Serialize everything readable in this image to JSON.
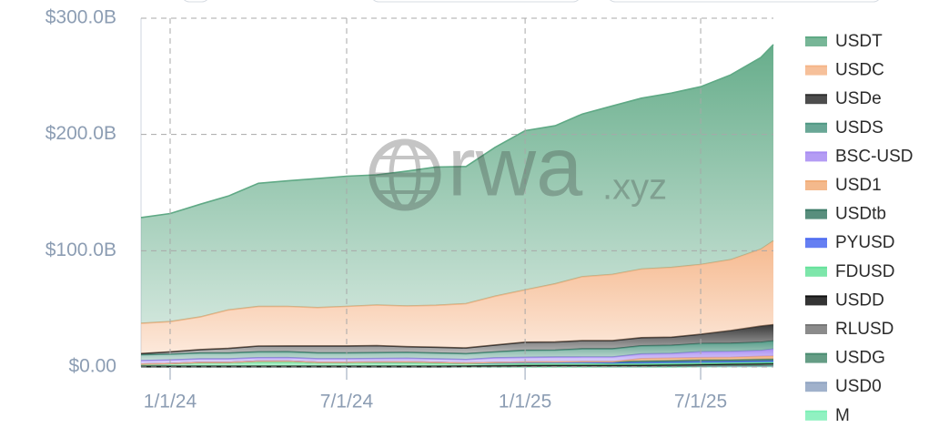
{
  "chart_data": {
    "type": "stacked-area",
    "watermark": "rwa",
    "watermark_suffix": ".xyz",
    "x": [
      "2023-12-02",
      "2024-01-01",
      "2024-02-01",
      "2024-03-01",
      "2024-04-01",
      "2024-05-01",
      "2024-06-01",
      "2024-07-01",
      "2024-08-01",
      "2024-09-01",
      "2024-10-01",
      "2024-11-01",
      "2024-12-01",
      "2025-01-01",
      "2025-02-01",
      "2025-03-01",
      "2025-04-01",
      "2025-05-01",
      "2025-06-01",
      "2025-07-01",
      "2025-08-01",
      "2025-09-01",
      "2025-09-14"
    ],
    "xlim": [
      "2023-12-02",
      "2025-09-14"
    ],
    "xticks": [
      {
        "value": "2024-01-01",
        "label": "1/1/24"
      },
      {
        "value": "2024-07-01",
        "label": "7/1/24"
      },
      {
        "value": "2025-01-01",
        "label": "1/1/25"
      },
      {
        "value": "2025-07-01",
        "label": "7/1/25"
      }
    ],
    "ylim": [
      0,
      300
    ],
    "yticks": [
      {
        "value": 0,
        "label": "$0.00"
      },
      {
        "value": 100,
        "label": "$100.0B"
      },
      {
        "value": 200,
        "label": "$200.0B"
      },
      {
        "value": 300,
        "label": "$300.0B"
      }
    ],
    "grid": true,
    "legend": "right",
    "series": [
      {
        "name": "USDT",
        "color": "#5fa985",
        "values": [
          91,
          93,
          97,
          98,
          106,
          108,
          111,
          112,
          112,
          116,
          119,
          118,
          128,
          137,
          136,
          140,
          145,
          147,
          150,
          153,
          159,
          165,
          169
        ]
      },
      {
        "name": "USDC",
        "color": "#f5b588",
        "values": [
          26,
          26,
          28,
          33,
          34,
          34,
          33,
          34,
          35,
          35,
          36,
          38,
          42,
          45,
          50,
          55,
          57,
          59,
          60,
          60,
          61,
          66,
          72
        ]
      },
      {
        "name": "USDe",
        "color": "#2e2e2e",
        "values": [
          1,
          2,
          3,
          4,
          5,
          5,
          6,
          6,
          6,
          5,
          5,
          5,
          6,
          7,
          7,
          7,
          7,
          7,
          7,
          8,
          11,
          14,
          14
        ]
      },
      {
        "name": "USDS",
        "color": "#4f9884",
        "values": [
          5,
          5,
          5,
          5,
          5,
          5,
          5,
          5,
          5,
          5,
          5,
          5,
          5,
          6,
          6,
          7,
          7,
          7,
          7,
          7,
          7,
          7,
          7
        ]
      },
      {
        "name": "BSC-USD",
        "color": "#a78bf2",
        "values": [
          3,
          3,
          3,
          3,
          3,
          3,
          3,
          3,
          3,
          3,
          3,
          3,
          4,
          4,
          4,
          4,
          4,
          4,
          4,
          5,
          5,
          5,
          6
        ]
      },
      {
        "name": "USD1",
        "color": "#f2ad78",
        "values": [
          0,
          0,
          0,
          0,
          0,
          0,
          0,
          0,
          0,
          0,
          0,
          0,
          0,
          0,
          0,
          0,
          0,
          2,
          2,
          2,
          2,
          2.5,
          2.5
        ]
      },
      {
        "name": "USDtb",
        "color": "#3b7a66",
        "values": [
          0,
          0,
          0,
          0,
          0,
          0,
          0,
          0,
          0,
          0,
          0,
          0,
          0.3,
          0.5,
          0.5,
          0.6,
          0.9,
          1.3,
          1.4,
          1.5,
          1.5,
          1.5,
          1.5
        ]
      },
      {
        "name": "PYUSD",
        "color": "#4a68f0",
        "values": [
          0.3,
          0.3,
          0.3,
          0.3,
          0.3,
          0.4,
          0.4,
          0.4,
          0.6,
          0.8,
          0.7,
          0.5,
          0.5,
          0.5,
          0.6,
          0.6,
          0.8,
          0.9,
          0.9,
          1,
          1,
          1.1,
          1.2
        ]
      },
      {
        "name": "FDUSD",
        "color": "#66e29b",
        "values": [
          1.5,
          2,
          3,
          3,
          4,
          4,
          3,
          3,
          3,
          3,
          2.5,
          2,
          2,
          2,
          2,
          2,
          1.5,
          1.5,
          1.5,
          1.5,
          1.3,
          1.3,
          1.2
        ]
      },
      {
        "name": "USDD",
        "color": "#111111",
        "values": [
          0.7,
          0.7,
          0.7,
          0.7,
          0.7,
          0.7,
          0.7,
          0.7,
          0.7,
          0.7,
          0.7,
          0.7,
          0.7,
          0.7,
          0.6,
          0.6,
          0.5,
          0.5,
          0.5,
          0.5,
          0.5,
          0.5,
          0.5
        ]
      },
      {
        "name": "RLUSD",
        "color": "#777777",
        "values": [
          0,
          0,
          0,
          0,
          0,
          0,
          0,
          0,
          0,
          0,
          0,
          0,
          0,
          0,
          0.1,
          0.1,
          0.2,
          0.3,
          0.4,
          0.5,
          0.6,
          0.7,
          0.7
        ]
      },
      {
        "name": "USDG",
        "color": "#4a8c70",
        "values": [
          0,
          0,
          0,
          0,
          0,
          0,
          0,
          0,
          0,
          0,
          0,
          0,
          0,
          0,
          0.1,
          0.1,
          0.2,
          0.2,
          0.3,
          0.4,
          0.6,
          0.7,
          0.8
        ]
      },
      {
        "name": "USD0",
        "color": "#8fa3c2",
        "values": [
          0,
          0,
          0,
          0,
          0,
          0,
          0,
          0,
          0,
          0,
          0.1,
          0.2,
          0.4,
          0.6,
          0.6,
          0.6,
          0.5,
          0.5,
          0.5,
          0.5,
          0.5,
          0.5,
          0.5
        ]
      },
      {
        "name": "M",
        "color": "#7cefb6",
        "values": [
          0,
          0,
          0,
          0,
          0,
          0,
          0,
          0,
          0,
          0,
          0,
          0,
          0,
          0,
          0,
          0,
          0,
          0,
          0.1,
          0.2,
          0.3,
          0.4,
          0.5
        ]
      }
    ]
  }
}
